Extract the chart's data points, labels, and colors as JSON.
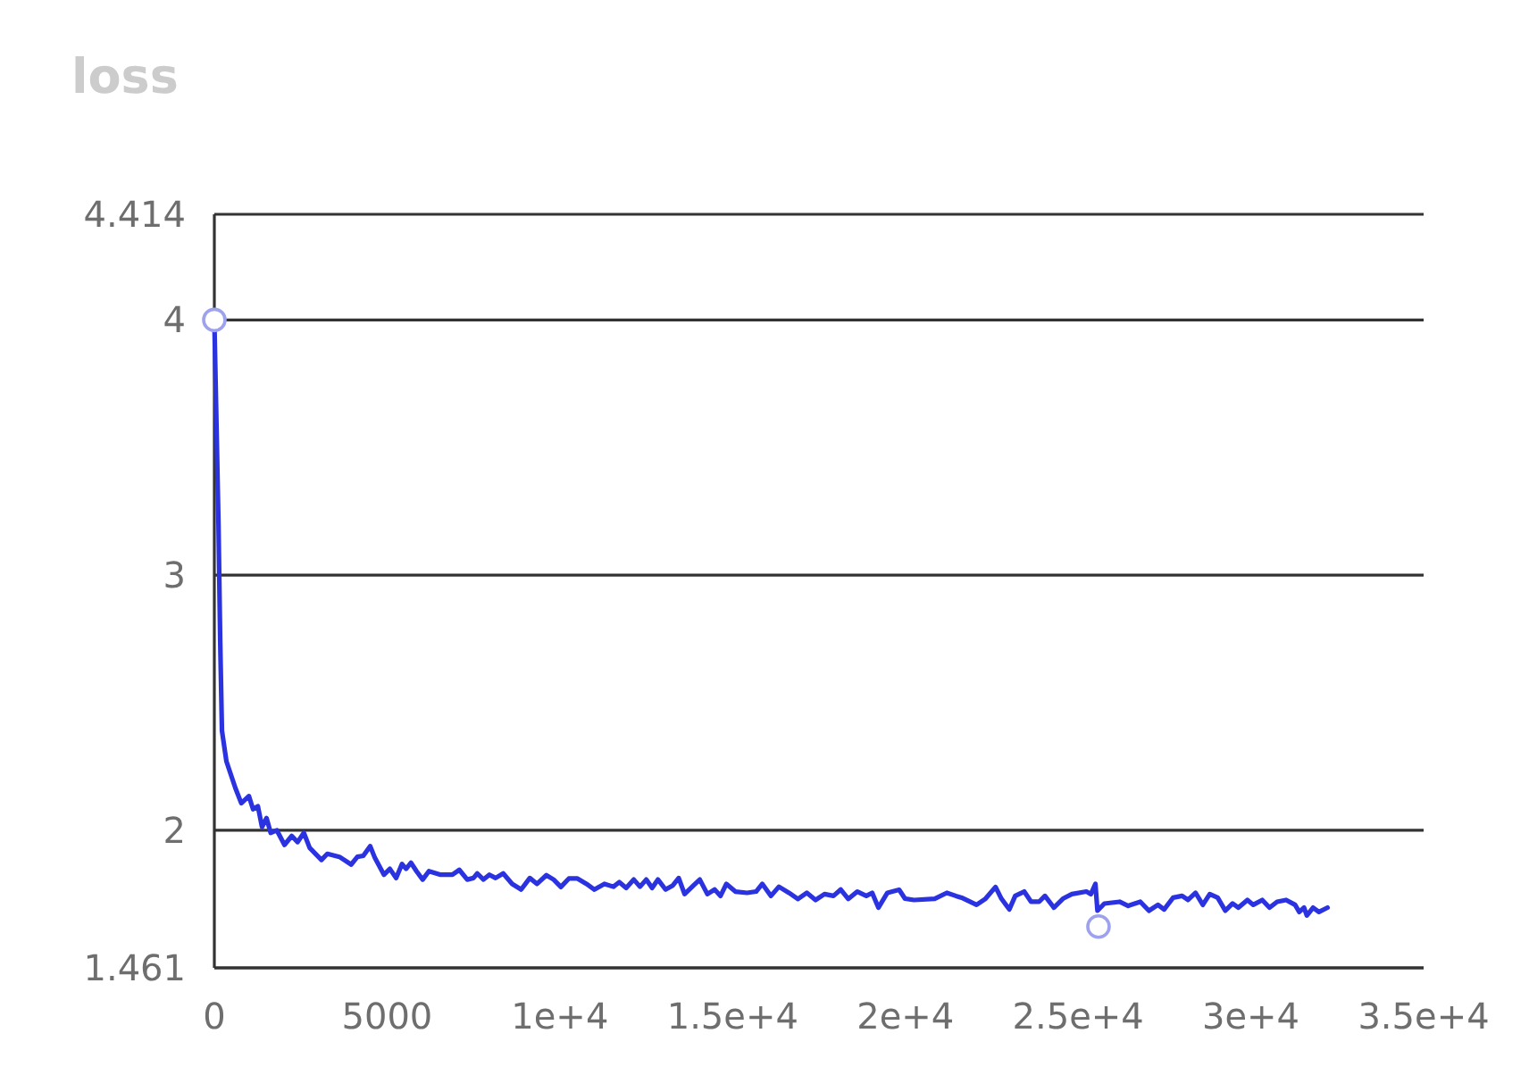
{
  "chart_data": {
    "type": "line",
    "title": "loss",
    "xlim": [
      0,
      35000
    ],
    "xticks": [
      0,
      5000,
      {
        "value": 10000,
        "label": "1e+4"
      },
      {
        "value": 15000,
        "label": "1.5e+4"
      },
      {
        "value": 20000,
        "label": "2e+4"
      },
      {
        "value": 25000,
        "label": "2.5e+4"
      },
      {
        "value": 30000,
        "label": "3e+4"
      },
      {
        "value": 35000,
        "label": "3.5e+4"
      }
    ],
    "ylim": [
      1.461,
      4.414
    ],
    "yticks": [
      1.461,
      2,
      3,
      4,
      4.414
    ],
    "grid": "y",
    "series": [
      {
        "color": "#2b33e0",
        "x": [
          0,
          50,
          120,
          170,
          220,
          350,
          610,
          780,
          1000,
          1120,
          1260,
          1380,
          1510,
          1630,
          1810,
          2030,
          2240,
          2410,
          2590,
          2760,
          3100,
          3270,
          3620,
          3960,
          4140,
          4310,
          4510,
          4650,
          4910,
          5080,
          5260,
          5430,
          5550,
          5690,
          5860,
          6030,
          6210,
          6550,
          6890,
          7090,
          7320,
          7500,
          7610,
          7790,
          7960,
          8140,
          8360,
          8620,
          8880,
          9130,
          9340,
          9610,
          9820,
          10030,
          10260,
          10510,
          10770,
          11000,
          11290,
          11550,
          11720,
          11920,
          12140,
          12320,
          12500,
          12670,
          12840,
          13060,
          13270,
          13440,
          13610,
          13870,
          14050,
          14270,
          14480,
          14650,
          14820,
          15080,
          15420,
          15680,
          15860,
          16110,
          16340,
          16630,
          16890,
          17150,
          17400,
          17660,
          17920,
          18130,
          18350,
          18610,
          18870,
          19040,
          19220,
          19480,
          19820,
          19990,
          20250,
          20850,
          21200,
          21460,
          21630,
          22060,
          22320,
          22610,
          22780,
          23010,
          23180,
          23440,
          23640,
          23870,
          24040,
          24300,
          24560,
          24820,
          25240,
          25370,
          25500,
          25560,
          25760,
          26200,
          26450,
          26800,
          27050,
          27310,
          27490,
          27750,
          28010,
          28180,
          28400,
          28610,
          28810,
          29040,
          29260,
          29470,
          29640,
          29900,
          30070,
          30330,
          30540,
          30760,
          31020,
          31280,
          31400,
          31540,
          31620,
          31800,
          31970,
          32220
        ],
        "values": [
          4.0,
          3.67,
          3.2,
          2.74,
          2.39,
          2.27,
          2.165,
          2.106,
          2.134,
          2.083,
          2.094,
          2.013,
          2.048,
          1.99,
          2.0,
          1.943,
          1.978,
          1.954,
          1.99,
          1.931,
          1.884,
          1.908,
          1.896,
          1.866,
          1.896,
          1.9,
          1.938,
          1.891,
          1.826,
          1.849,
          1.813,
          1.868,
          1.849,
          1.873,
          1.838,
          1.807,
          1.84,
          1.826,
          1.826,
          1.845,
          1.807,
          1.813,
          1.831,
          1.807,
          1.826,
          1.813,
          1.831,
          1.79,
          1.768,
          1.813,
          1.79,
          1.824,
          1.807,
          1.778,
          1.811,
          1.811,
          1.79,
          1.768,
          1.79,
          1.779,
          1.797,
          1.774,
          1.807,
          1.779,
          1.807,
          1.774,
          1.807,
          1.768,
          1.784,
          1.813,
          1.75,
          1.784,
          1.807,
          1.75,
          1.768,
          1.743,
          1.79,
          1.76,
          1.755,
          1.76,
          1.79,
          1.743,
          1.779,
          1.755,
          1.731,
          1.755,
          1.727,
          1.75,
          1.743,
          1.768,
          1.731,
          1.76,
          1.743,
          1.755,
          1.697,
          1.755,
          1.767,
          1.732,
          1.727,
          1.732,
          1.755,
          1.743,
          1.736,
          1.708,
          1.732,
          1.778,
          1.732,
          1.69,
          1.743,
          1.76,
          1.72,
          1.72,
          1.743,
          1.697,
          1.732,
          1.75,
          1.76,
          1.75,
          1.79,
          1.685,
          1.713,
          1.72,
          1.704,
          1.72,
          1.685,
          1.708,
          1.69,
          1.736,
          1.743,
          1.727,
          1.755,
          1.708,
          1.75,
          1.736,
          1.685,
          1.713,
          1.697,
          1.727,
          1.708,
          1.727,
          1.697,
          1.72,
          1.727,
          1.708,
          1.68,
          1.697,
          1.666,
          1.697,
          1.68,
          1.697
        ]
      },
      {
        "type": "scatter",
        "color": "#9ea2ee",
        "marker": "circle",
        "x": [
          0,
          25590
        ],
        "values": [
          4.0,
          1.623
        ]
      }
    ]
  }
}
